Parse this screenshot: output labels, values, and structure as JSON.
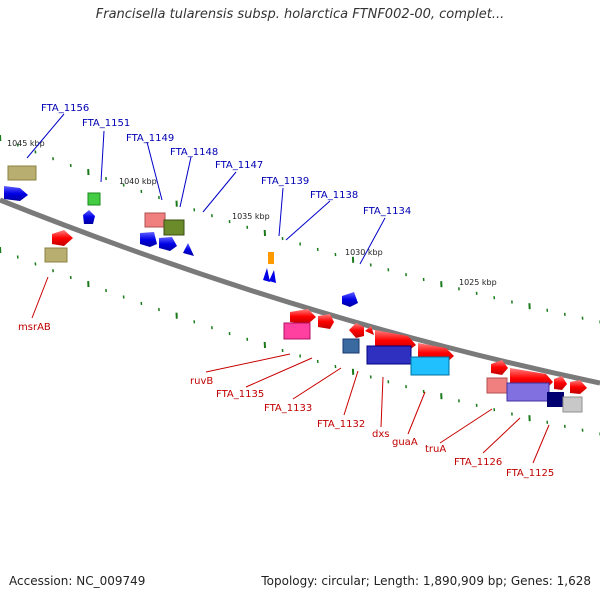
{
  "title": "Francisella tularensis subsp. holarctica FTNF002-00, complet...",
  "footer": {
    "accession": "Accession: NC_009749",
    "topology": "Topology: circular; Length: 1,890,909 bp; Genes: 1,628"
  },
  "colors": {
    "backbone": "#7a7a7a",
    "tick": "#1a7a1a",
    "label_blue": "#0000b4",
    "label_red": "#c00000",
    "gene_blue": "#0000e6",
    "gene_red": "#ff0000"
  },
  "scale_labels": [
    "1045 kbp",
    "1040 kbp",
    "1035 kbp",
    "1030 kbp",
    "1025 kbp"
  ],
  "upper_labels": [
    "FTA_1156",
    "FTA_1151",
    "FTA_1149",
    "FTA_1148",
    "FTA_1147",
    "FTA_1139",
    "FTA_1138",
    "FTA_1134"
  ],
  "lower_labels": [
    "msrAB",
    "ruvB",
    "FTA_1135",
    "FTA_1133",
    "FTA_1132",
    "dxs",
    "guaA",
    "truA",
    "FTA_1126",
    "FTA_1125"
  ]
}
